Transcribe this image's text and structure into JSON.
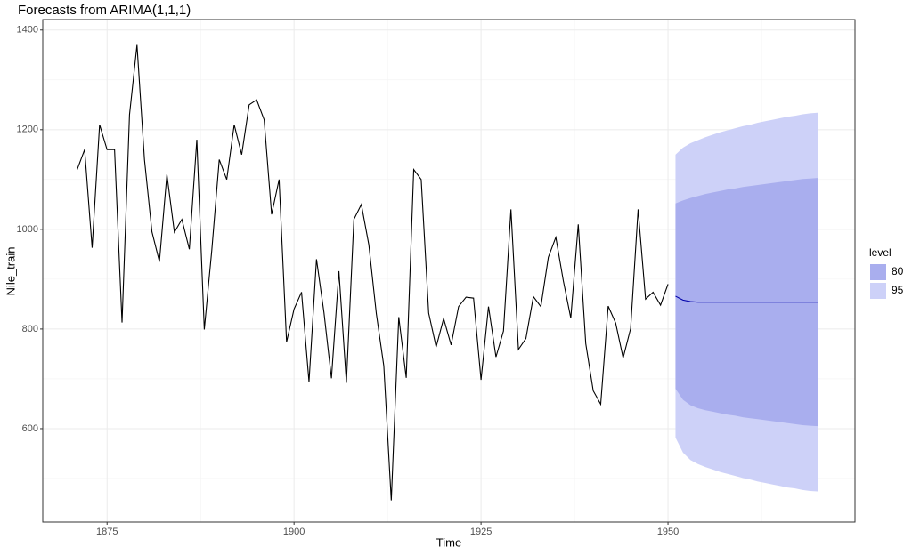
{
  "chart_data": {
    "type": "line",
    "title": "Forecasts from ARIMA(1,1,1)",
    "x_label": "Time",
    "y_label": "Nile_train",
    "xlim": [
      1866.4,
      1975
    ],
    "ylim": [
      412.5,
      1421
    ],
    "xticks": [
      1875,
      1900,
      1925,
      1950
    ],
    "yticks": [
      600,
      800,
      1000,
      1200,
      1400
    ],
    "xminor": [
      1887.5,
      1912.5,
      1937.5,
      1962.5
    ],
    "yminor": [
      500,
      700,
      900,
      1100,
      1300
    ],
    "grid": true,
    "series": [
      {
        "color": "#000000",
        "x": [
          1871,
          1872,
          1873,
          1874,
          1875,
          1876,
          1877,
          1878,
          1879,
          1880,
          1881,
          1882,
          1883,
          1884,
          1885,
          1886,
          1887,
          1888,
          1889,
          1890,
          1891,
          1892,
          1893,
          1894,
          1895,
          1896,
          1897,
          1898,
          1899,
          1900,
          1901,
          1902,
          1903,
          1904,
          1905,
          1906,
          1907,
          1908,
          1909,
          1910,
          1911,
          1912,
          1913,
          1914,
          1915,
          1916,
          1917,
          1918,
          1919,
          1920,
          1921,
          1922,
          1923,
          1924,
          1925,
          1926,
          1927,
          1928,
          1929,
          1930,
          1931,
          1932,
          1933,
          1934,
          1935,
          1936,
          1937,
          1938,
          1939,
          1940,
          1941,
          1942,
          1943,
          1944,
          1945,
          1946,
          1947,
          1948,
          1949,
          1950
        ],
        "values": [
          1120,
          1160,
          963,
          1210,
          1160,
          1160,
          813,
          1230,
          1370,
          1140,
          995,
          935,
          1110,
          994,
          1020,
          960,
          1180,
          799,
          958,
          1140,
          1100,
          1210,
          1150,
          1250,
          1260,
          1220,
          1030,
          1100,
          774,
          840,
          874,
          694,
          940,
          833,
          701,
          916,
          692,
          1020,
          1050,
          969,
          831,
          726,
          456,
          824,
          702,
          1120,
          1100,
          832,
          764,
          821,
          768,
          845,
          864,
          862,
          698,
          845,
          744,
          796,
          1040,
          759,
          781,
          865,
          845,
          944,
          984,
          897,
          822,
          1010,
          771,
          676,
          649,
          846,
          812,
          742,
          801,
          1040,
          860,
          874,
          848,
          890
        ]
      },
      {
        "color": "#0000aa",
        "x": [
          1951,
          1952,
          1953,
          1954,
          1955,
          1956,
          1957,
          1958,
          1959,
          1960,
          1961,
          1962,
          1963,
          1964,
          1965,
          1966,
          1967,
          1968,
          1969,
          1970
        ],
        "values": [
          866,
          858,
          855,
          854,
          854,
          854,
          854,
          854,
          854,
          854,
          854,
          854,
          854,
          854,
          854,
          854,
          854,
          854,
          854,
          854
        ]
      }
    ],
    "legend_title": "level",
    "bands": [
      {
        "name": "95",
        "color": "#cdd1f8",
        "x": [
          1951,
          1952,
          1953,
          1954,
          1955,
          1956,
          1957,
          1958,
          1959,
          1960,
          1961,
          1962,
          1963,
          1964,
          1965,
          1966,
          1967,
          1968,
          1969,
          1970
        ],
        "lower": [
          582,
          552,
          537,
          529,
          523,
          518,
          513,
          509,
          505,
          501,
          498,
          494,
          491,
          488,
          485,
          482,
          480,
          477,
          475,
          474
        ],
        "upper": [
          1150,
          1164,
          1173,
          1179,
          1185,
          1190,
          1195,
          1199,
          1203,
          1207,
          1210,
          1214,
          1217,
          1220,
          1223,
          1226,
          1228,
          1231,
          1233,
          1234
        ]
      },
      {
        "name": "80",
        "color": "#a9aeee",
        "x": [
          1951,
          1952,
          1953,
          1954,
          1955,
          1956,
          1957,
          1958,
          1959,
          1960,
          1961,
          1962,
          1963,
          1964,
          1965,
          1966,
          1967,
          1968,
          1969,
          1970
        ],
        "lower": [
          680,
          658,
          647,
          641,
          637,
          634,
          631,
          628,
          626,
          623,
          621,
          619,
          617,
          615,
          613,
          611,
          609,
          607,
          606,
          605
        ],
        "upper": [
          1052,
          1058,
          1063,
          1067,
          1071,
          1074,
          1077,
          1080,
          1082,
          1085,
          1087,
          1089,
          1091,
          1093,
          1095,
          1097,
          1099,
          1101,
          1102,
          1103
        ]
      }
    ]
  }
}
